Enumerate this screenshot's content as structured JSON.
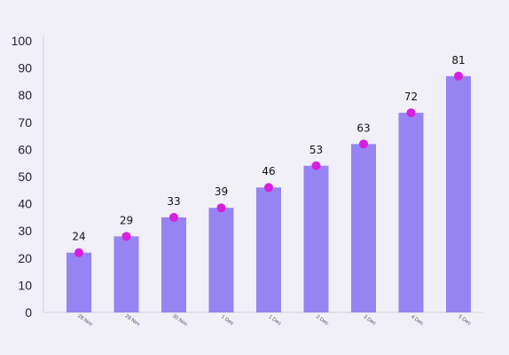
{
  "chart_data": {
    "type": "bar",
    "title": "",
    "xlabel": "",
    "ylabel": "",
    "categories": [
      "28 Nov",
      "29 Nov",
      "30 Nov",
      "1 Dec",
      "1 Dec",
      "2 Dec",
      "3 Dec",
      "4 Dec",
      "5 Dec"
    ],
    "values": [
      24,
      29,
      33,
      39,
      46,
      53,
      63,
      72,
      81
    ],
    "marker_values": [
      22,
      28,
      35,
      38.5,
      46,
      54,
      62,
      73.5,
      87
    ],
    "ylim": [
      0,
      100
    ],
    "yticks": [
      0,
      10,
      20,
      30,
      40,
      50,
      60,
      70,
      80,
      90,
      100
    ],
    "grid": false,
    "legend": "none",
    "colors": {
      "bar": "#9584f2",
      "marker": "#d81fe0",
      "background": "#f1f0f8",
      "axis": "#cfcfe0"
    }
  }
}
